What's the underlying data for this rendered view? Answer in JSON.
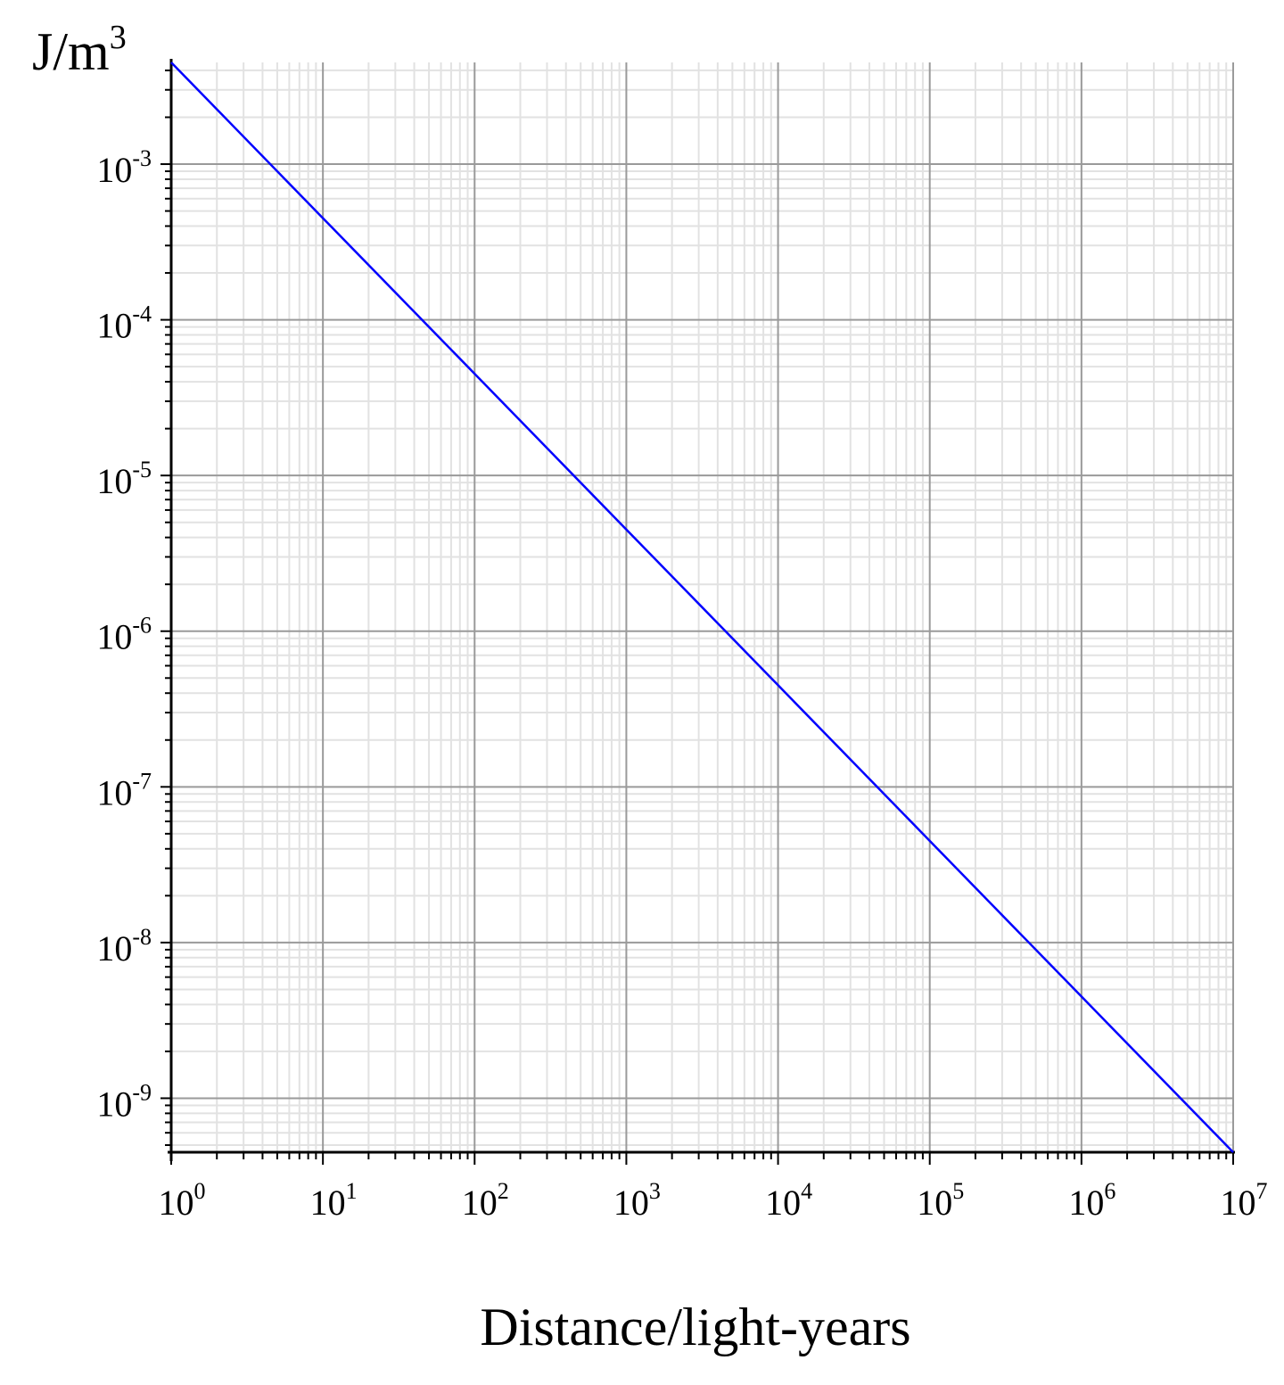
{
  "chart_data": {
    "type": "line",
    "title": "",
    "xlabel": "Distance/light-years",
    "ylabel": {
      "base": "J/m",
      "sup": "3"
    },
    "x_scale": "log",
    "y_scale": "log",
    "xlim": [
      1,
      10000000
    ],
    "ylim": [
      4.5e-10,
      0.0045
    ],
    "grid": true,
    "x_ticks": [
      {
        "base": "10",
        "exp": "0",
        "value": 1
      },
      {
        "base": "10",
        "exp": "1",
        "value": 10
      },
      {
        "base": "10",
        "exp": "2",
        "value": 100
      },
      {
        "base": "10",
        "exp": "3",
        "value": 1000
      },
      {
        "base": "10",
        "exp": "4",
        "value": 10000
      },
      {
        "base": "10",
        "exp": "5",
        "value": 100000
      },
      {
        "base": "10",
        "exp": "6",
        "value": 1000000
      },
      {
        "base": "10",
        "exp": "7",
        "value": 10000000
      }
    ],
    "y_ticks": [
      {
        "base": "10",
        "exp": "-3",
        "value": 0.001
      },
      {
        "base": "10",
        "exp": "-4",
        "value": 0.0001
      },
      {
        "base": "10",
        "exp": "-5",
        "value": 1e-05
      },
      {
        "base": "10",
        "exp": "-6",
        "value": 1e-06
      },
      {
        "base": "10",
        "exp": "-7",
        "value": 1e-07
      },
      {
        "base": "10",
        "exp": "-8",
        "value": 1e-08
      },
      {
        "base": "10",
        "exp": "-9",
        "value": 1e-09
      }
    ],
    "series": [
      {
        "color": "#0000ff",
        "x": [
          1,
          10,
          100,
          1000,
          10000,
          100000,
          1000000,
          10000000
        ],
        "y": [
          0.0045,
          0.00045,
          4.5e-05,
          4.5e-06,
          4.5e-07,
          4.5e-08,
          4.5e-09,
          4.5e-10
        ]
      }
    ]
  }
}
